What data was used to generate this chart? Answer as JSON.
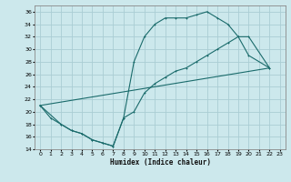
{
  "xlabel": "Humidex (Indice chaleur)",
  "bg_color": "#cce8ec",
  "line_color": "#1a6b6b",
  "grid_color": "#aacdd4",
  "xlim": [
    -0.5,
    23.5
  ],
  "ylim": [
    14,
    37
  ],
  "xticks": [
    0,
    1,
    2,
    3,
    4,
    5,
    6,
    7,
    8,
    9,
    10,
    11,
    12,
    13,
    14,
    15,
    16,
    17,
    18,
    19,
    20,
    21,
    22,
    23
  ],
  "yticks": [
    14,
    16,
    18,
    20,
    22,
    24,
    26,
    28,
    30,
    32,
    34,
    36
  ],
  "line1_x": [
    0,
    1,
    2,
    3,
    4,
    5,
    6,
    7,
    8,
    9,
    10,
    11,
    12,
    13,
    14,
    15,
    16,
    17,
    18,
    19,
    20,
    22
  ],
  "line1_y": [
    21,
    19,
    18,
    17,
    16.5,
    15.5,
    15,
    14.5,
    19,
    28,
    32,
    34,
    35,
    35,
    35,
    35.5,
    36,
    35,
    34,
    32,
    29,
    27
  ],
  "line2_x": [
    0,
    2,
    3,
    4,
    5,
    6,
    7,
    8,
    9,
    10,
    11,
    12,
    13,
    14,
    15,
    16,
    17,
    18,
    19,
    20,
    22
  ],
  "line2_y": [
    21,
    18,
    17,
    16.5,
    15.5,
    15,
    14.5,
    19,
    20,
    23,
    24.5,
    25.5,
    26.5,
    27,
    28,
    29,
    30,
    31,
    32,
    32,
    27
  ],
  "line3_x": [
    0,
    22
  ],
  "line3_y": [
    21,
    27
  ]
}
